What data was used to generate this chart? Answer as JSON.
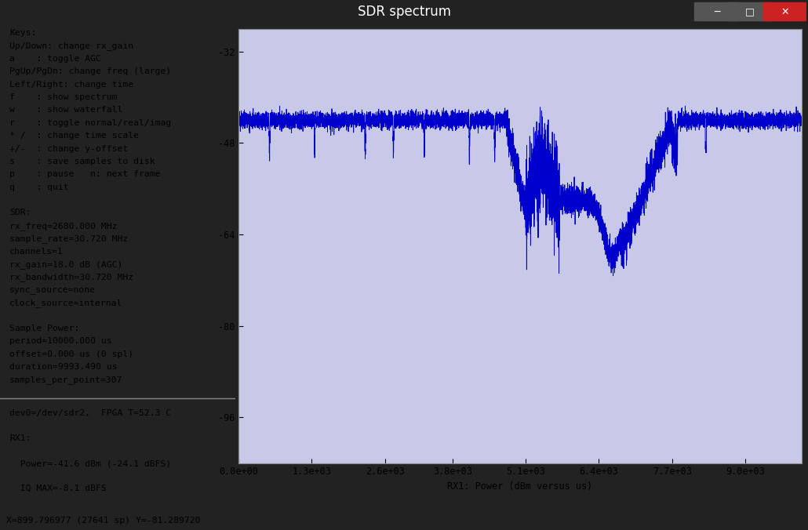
{
  "title": "SDR spectrum",
  "bg_dark": "#222222",
  "bg_light": "#c8c8e8",
  "line_color": "#0000cc",
  "text_color": "#000000",
  "title_color": "#ffffff",
  "xlabel": "RX1: Power (dBm versus us)",
  "xlim": [
    0,
    10000
  ],
  "ylim": [
    -104,
    -28
  ],
  "yticks": [
    -96,
    -80,
    -64,
    -48,
    -32
  ],
  "xtick_vals": [
    0,
    1300,
    2600,
    3800,
    5100,
    6400,
    7700,
    9000
  ],
  "xtick_labels": [
    "0.0e+00",
    "1.3e+03",
    "2.6e+03",
    "3.8e+03",
    "5.1e+03",
    "6.4e+03",
    "7.7e+03",
    "9.0e+03"
  ],
  "left_text_lines": [
    "Keys:",
    "Up/Down: change rx_gain",
    "a    : toggle AGC",
    "PgUp/PgDn: change freq (large)",
    "Left/Right: change time",
    "f    : show spectrum",
    "w    : show waterfall",
    "r    : toggle normal/real/imag",
    "* /  : change time scale",
    "+/-  : change y-offset",
    "s    : save samples to disk",
    "p    : pause   n: next frame",
    "q    : quit",
    "",
    "SDR:",
    "rx_freq=2680.000 MHz",
    "sample_rate=30.720 MHz",
    "channels=1",
    "rx_gain=18.0 dB (AGC)",
    "rx_bandwidth=30.720 MHz",
    "sync_source=none",
    "clock_source=internal",
    "",
    "Sample Power:",
    "period=10000.000 us",
    "offset=0.000 us (0 spl)",
    "duration=9993.490 us",
    "samples_per_point=307"
  ],
  "bottom_text_lines": [
    "dev0=/dev/sdr2,  FPGA T=52.3 C",
    "RX1:",
    "  Power=-41.6 dBm (-24.1 dBFS)",
    "  IQ MAX=-8.1 dBFS"
  ],
  "status_bar": "X=899.796977 (27641 sp) Y=-81.289720",
  "font_size_left": 8.2,
  "font_size_axis": 8.5,
  "font_size_title": 12,
  "font_size_status": 8.2
}
